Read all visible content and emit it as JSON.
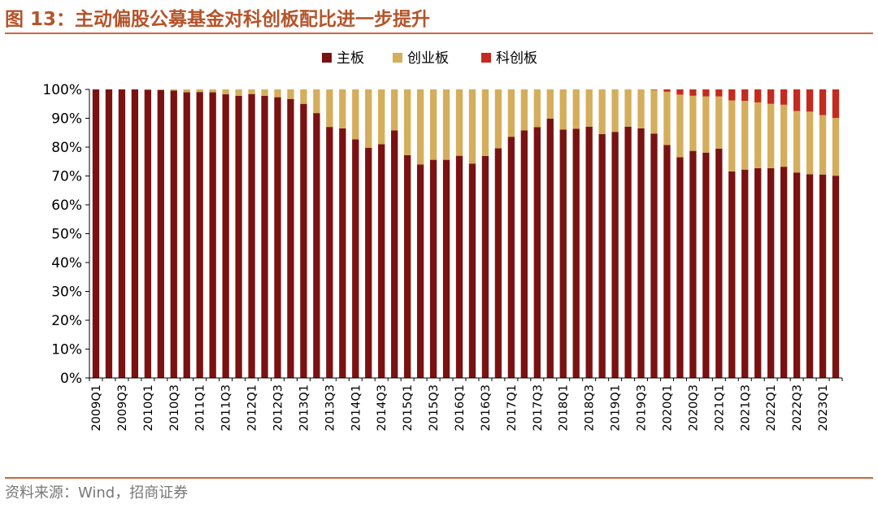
{
  "header": {
    "title": "图 13：主动偏股公募基金对科创板配比进一步提升"
  },
  "footer": {
    "source": "资料来源：Wind，招商证券"
  },
  "colors": {
    "main_board": "#7a1212",
    "chinext": "#d4ae5c",
    "star": "#c42a1e",
    "accent": "#b5542a"
  },
  "chart_data": {
    "type": "bar",
    "stacked": true,
    "title": "",
    "xlabel": "",
    "ylabel": "",
    "ylim": [
      0,
      100
    ],
    "y_unit": "%",
    "yticks": [
      "0%",
      "10%",
      "20%",
      "30%",
      "40%",
      "50%",
      "60%",
      "70%",
      "80%",
      "90%",
      "100%"
    ],
    "legend_position": "top-center",
    "grid": false,
    "xtick_labels": [
      "2009Q1",
      "2009Q3",
      "2010Q1",
      "2010Q3",
      "2011Q1",
      "2011Q3",
      "2012Q1",
      "2012Q3",
      "2013Q1",
      "2013Q3",
      "2014Q1",
      "2014Q3",
      "2015Q1",
      "2015Q3",
      "2016Q1",
      "2016Q3",
      "2017Q1",
      "2017Q3",
      "2018Q1",
      "2018Q3",
      "2019Q1",
      "2019Q3",
      "2020Q1",
      "2020Q3",
      "2021Q1",
      "2021Q3",
      "2022Q1",
      "2022Q3",
      "2023Q1"
    ],
    "categories": [
      "2009Q1",
      "2009Q2",
      "2009Q3",
      "2009Q4",
      "2010Q1",
      "2010Q2",
      "2010Q3",
      "2010Q4",
      "2011Q1",
      "2011Q2",
      "2011Q3",
      "2011Q4",
      "2012Q1",
      "2012Q2",
      "2012Q3",
      "2012Q4",
      "2013Q1",
      "2013Q2",
      "2013Q3",
      "2013Q4",
      "2014Q1",
      "2014Q2",
      "2014Q3",
      "2014Q4",
      "2015Q1",
      "2015Q2",
      "2015Q3",
      "2015Q4",
      "2016Q1",
      "2016Q2",
      "2016Q3",
      "2016Q4",
      "2017Q1",
      "2017Q2",
      "2017Q3",
      "2017Q4",
      "2018Q1",
      "2018Q2",
      "2018Q3",
      "2018Q4",
      "2019Q1",
      "2019Q2",
      "2019Q3",
      "2019Q4",
      "2020Q1",
      "2020Q2",
      "2020Q3",
      "2020Q4",
      "2021Q1",
      "2021Q2",
      "2021Q3",
      "2021Q4",
      "2022Q1",
      "2022Q2",
      "2022Q3",
      "2022Q4",
      "2023Q1",
      "2023Q2"
    ],
    "series": [
      {
        "name": "主板",
        "color": "#7a1212",
        "values": [
          100,
          100,
          100,
          100,
          99.9,
          99.8,
          99.6,
          99,
          99.1,
          99,
          98.3,
          97.8,
          98.4,
          97.8,
          97.3,
          96.7,
          95,
          91.8,
          87,
          86.5,
          82.7,
          79.8,
          81,
          85.8,
          77.2,
          74,
          75.6,
          75.6,
          77,
          74.3,
          76.9,
          79.6,
          83.6,
          85.8,
          86.9,
          89.9,
          86.1,
          86.4,
          87.1,
          84.5,
          85.3,
          87.1,
          86.5,
          84.7,
          80.7,
          76.5,
          78.7,
          78.1,
          79.5,
          71.6,
          72.2,
          72.7,
          72.7,
          73.2,
          71.2,
          70.6,
          70.5,
          70.1
        ]
      },
      {
        "name": "创业板",
        "color": "#d4ae5c",
        "values": [
          0,
          0,
          0,
          0,
          0.1,
          0.2,
          0.4,
          1,
          0.9,
          1,
          1.7,
          2.2,
          1.6,
          2.2,
          2.7,
          3.3,
          5,
          8.2,
          13,
          13.5,
          17.3,
          20.2,
          19,
          14.2,
          22.8,
          26,
          24.4,
          24.4,
          23,
          25.7,
          23.1,
          20.4,
          16.4,
          14.2,
          13.1,
          10.1,
          13.9,
          13.6,
          12.9,
          15.5,
          14.7,
          12.9,
          13.5,
          15.1,
          18.5,
          21.7,
          19.1,
          19.5,
          18.1,
          24.6,
          23.8,
          22.8,
          22.3,
          21.5,
          21.3,
          21.7,
          20.6,
          20
        ]
      },
      {
        "name": "科创板",
        "color": "#c42a1e",
        "values": [
          0,
          0,
          0,
          0,
          0,
          0,
          0,
          0,
          0,
          0,
          0,
          0,
          0,
          0,
          0,
          0,
          0,
          0,
          0,
          0,
          0,
          0,
          0,
          0,
          0,
          0,
          0,
          0,
          0,
          0,
          0,
          0,
          0,
          0,
          0,
          0,
          0,
          0,
          0,
          0,
          0,
          0,
          0,
          0.2,
          0.8,
          1.8,
          2.2,
          2.4,
          2.4,
          3.8,
          4,
          4.5,
          5,
          5.3,
          7.5,
          7.7,
          8.9,
          9.9
        ]
      }
    ]
  }
}
